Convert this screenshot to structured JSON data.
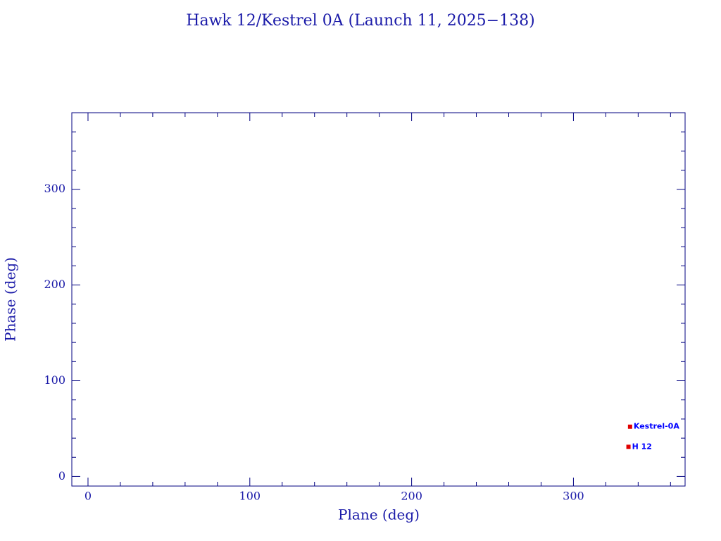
{
  "chart_data": {
    "type": "scatter",
    "title": "Hawk 12/Kestrel 0A (Launch 11, 2025−138)",
    "x_label": "Plane (deg)",
    "y_label": "Phase (deg)",
    "xlim": [
      -10,
      369
    ],
    "ylim": [
      -10,
      380
    ],
    "xticks": [
      0,
      100,
      200,
      300
    ],
    "yticks": [
      0,
      100,
      200,
      300
    ],
    "xminorticks": [
      20,
      40,
      60,
      80,
      120,
      140,
      160,
      180,
      220,
      240,
      260,
      280,
      320,
      340,
      360
    ],
    "yminorticks": [
      20,
      40,
      60,
      80,
      120,
      140,
      160,
      180,
      220,
      240,
      260,
      280,
      320,
      340,
      360
    ],
    "axis_color": "#000080",
    "label_color": "#0000ff",
    "series": [
      {
        "name": "Kestrel-0A",
        "color": "#e00000",
        "x": [
          335
        ],
        "values": [
          52
        ]
      },
      {
        "name": "H 12",
        "color": "#e00000",
        "x": [
          334
        ],
        "values": [
          31
        ]
      }
    ]
  }
}
